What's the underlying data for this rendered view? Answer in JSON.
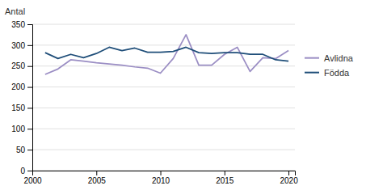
{
  "chart_data": {
    "type": "line",
    "ylabel": "Antal",
    "x": [
      2001,
      2002,
      2003,
      2004,
      2005,
      2006,
      2007,
      2008,
      2009,
      2010,
      2011,
      2012,
      2013,
      2014,
      2015,
      2016,
      2017,
      2018,
      2019,
      2020
    ],
    "series": [
      {
        "name": "Avlidna",
        "color": "#9b8ec4",
        "values": [
          230,
          243,
          265,
          262,
          258,
          255,
          252,
          248,
          245,
          233,
          268,
          325,
          252,
          252,
          278,
          295,
          237,
          270,
          268,
          287
        ]
      },
      {
        "name": "Födda",
        "color": "#1f4e79",
        "values": [
          282,
          268,
          278,
          270,
          280,
          295,
          287,
          293,
          283,
          283,
          285,
          295,
          282,
          280,
          282,
          282,
          278,
          278,
          265,
          262
        ]
      }
    ],
    "xlim": [
      2000,
      2020.5
    ],
    "xticks": [
      2000,
      2005,
      2010,
      2015,
      2020
    ],
    "ylim": [
      0,
      350
    ],
    "yticks": [
      0,
      50,
      100,
      150,
      200,
      250,
      300,
      350
    ],
    "grid": "y",
    "legend": "right"
  }
}
